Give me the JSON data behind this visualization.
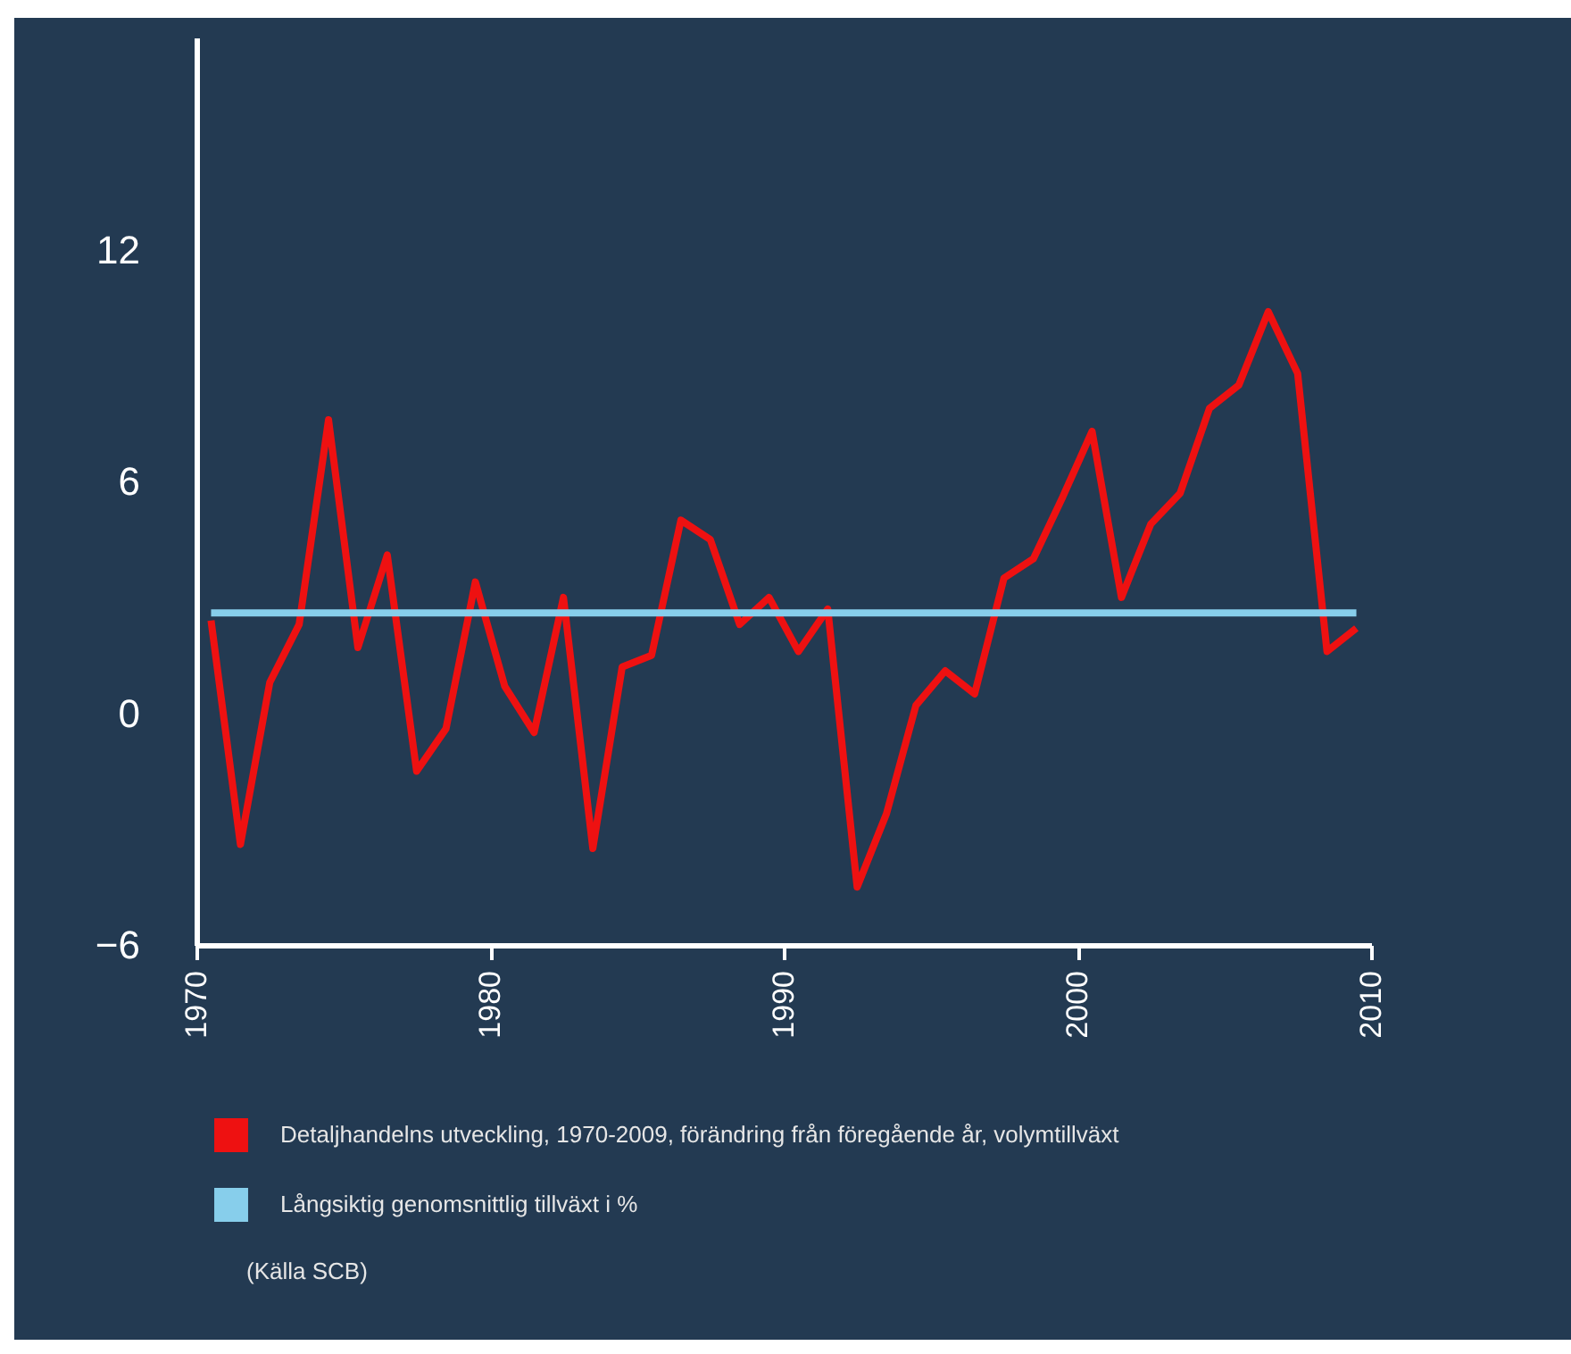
{
  "chart_data": {
    "type": "line",
    "x": [
      1970.5,
      1971.5,
      1972.5,
      1973.5,
      1974.5,
      1975.5,
      1976.5,
      1977.5,
      1978.5,
      1979.5,
      1980.5,
      1981.5,
      1982.5,
      1983.5,
      1984.5,
      1985.5,
      1986.5,
      1987.5,
      1988.5,
      1989.5,
      1990.5,
      1991.5,
      1992.5,
      1993.5,
      1994.5,
      1995.5,
      1996.5,
      1997.5,
      1998.5,
      1999.5,
      2000.5,
      2001.5,
      2002.5,
      2003.5,
      2004.5,
      2005.5,
      2006.5,
      2007.5,
      2008.5,
      2009.5
    ],
    "series": [
      {
        "name": "Detaljhandelns utveckling, 1970-2009, förändring från föregående år, volymtillväxt",
        "color": "#ee1111",
        "values": [
          2.4,
          -3.4,
          0.8,
          2.3,
          7.6,
          1.7,
          4.1,
          -1.5,
          -0.4,
          3.4,
          0.7,
          -0.5,
          3.0,
          -3.5,
          1.2,
          1.5,
          5.0,
          4.5,
          2.3,
          3.0,
          1.6,
          2.7,
          -4.5,
          -2.6,
          0.2,
          1.1,
          0.5,
          3.5,
          4.0,
          5.6,
          7.3,
          3.0,
          4.9,
          5.7,
          7.9,
          8.5,
          10.4,
          8.8,
          1.6,
          2.2
        ]
      },
      {
        "name": "Långsiktig genomsnittlig tillväxt i %",
        "color": "#87ceeb",
        "type": "line",
        "x": [
          1970.5,
          2009.5
        ],
        "values": [
          2.6,
          2.6
        ]
      }
    ],
    "xlim": [
      1970,
      2010
    ],
    "xticks": [
      1970,
      1980,
      1990,
      2000,
      2010
    ],
    "ylim": [
      -6,
      17.5
    ],
    "yticks": [
      -6,
      0,
      6,
      12
    ],
    "grid": false,
    "legend": "bottom",
    "annotations": [
      "(Källa SCB)"
    ]
  }
}
